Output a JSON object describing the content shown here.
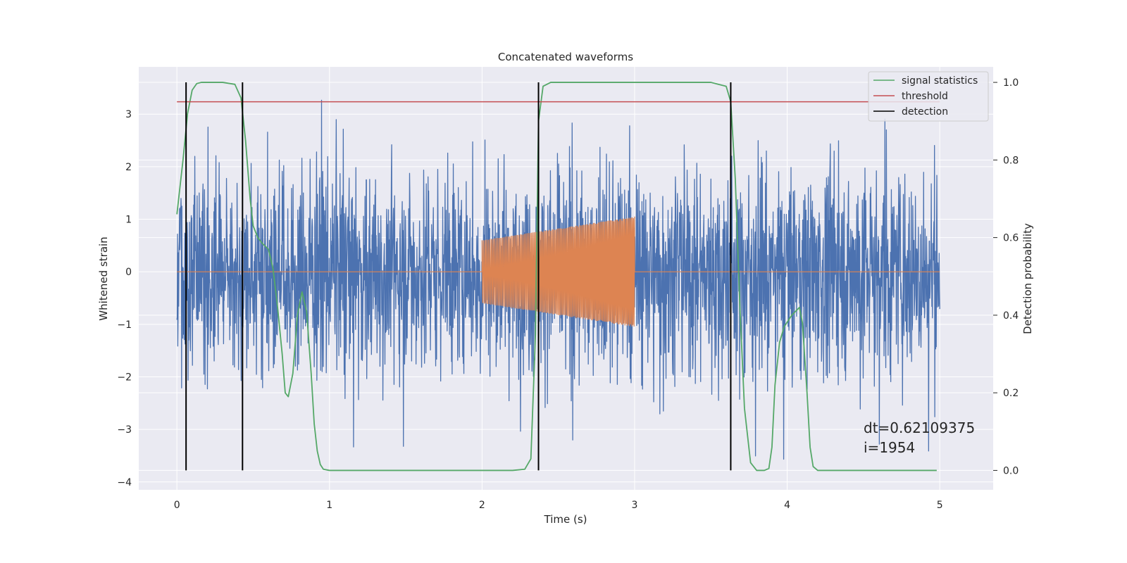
{
  "chart_data": {
    "type": "line",
    "title": "Concatenated waveforms",
    "xlabel": "Time (s)",
    "ylabel": "Whitened strain",
    "ylabel_right": "Detection probability",
    "xlim": [
      -0.25,
      5.35
    ],
    "ylim": [
      -4.15,
      3.9
    ],
    "ylim_right": [
      -0.05,
      1.04
    ],
    "x_ticks": [
      0,
      1,
      2,
      3,
      4,
      5
    ],
    "y_ticks": [
      -4,
      -3,
      -2,
      -1,
      0,
      1,
      2,
      3
    ],
    "y_ticks_right": [
      0.0,
      0.2,
      0.4,
      0.6,
      0.8,
      1.0
    ],
    "grid": true,
    "legend_position": "top-right",
    "legend": [
      {
        "label": "signal statistics",
        "color": "#55a868"
      },
      {
        "label": "threshold",
        "color": "#c44e52"
      },
      {
        "label": "detection",
        "color": "#000000"
      }
    ],
    "series": [
      {
        "kind": "noise",
        "axis": "left",
        "color": "#4c72b0",
        "x_range": [
          0,
          5
        ],
        "envelope": [
          -3.9,
          3.6
        ]
      },
      {
        "kind": "chirp",
        "axis": "left",
        "color": "#dd8452",
        "x_range": [
          0,
          5
        ],
        "signal_window": [
          2.0,
          3.0
        ],
        "amplitude": [
          0.6,
          1.05
        ]
      },
      {
        "name": "signal statistics",
        "axis": "right",
        "color": "#55a868",
        "x": [
          0.0,
          0.04,
          0.07,
          0.1,
          0.13,
          0.16,
          0.2,
          0.3,
          0.38,
          0.42,
          0.45,
          0.48,
          0.5,
          0.53,
          0.56,
          0.6,
          0.63,
          0.66,
          0.69,
          0.71,
          0.73,
          0.76,
          0.79,
          0.82,
          0.85,
          0.88,
          0.9,
          0.92,
          0.94,
          0.96,
          1.0,
          1.5,
          2.0,
          2.2,
          2.28,
          2.32,
          2.35,
          2.37,
          2.4,
          2.45,
          3.0,
          3.5,
          3.6,
          3.63,
          3.66,
          3.69,
          3.72,
          3.76,
          3.8,
          3.85,
          3.88,
          3.9,
          3.92,
          3.95,
          3.98,
          4.03,
          4.08,
          4.1,
          4.13,
          4.15,
          4.17,
          4.2,
          4.3,
          4.98
        ],
        "y": [
          0.66,
          0.8,
          0.92,
          0.98,
          0.997,
          1.0,
          1.0,
          1.0,
          0.995,
          0.96,
          0.85,
          0.7,
          0.63,
          0.6,
          0.585,
          0.57,
          0.52,
          0.42,
          0.3,
          0.2,
          0.19,
          0.25,
          0.4,
          0.46,
          0.41,
          0.25,
          0.12,
          0.05,
          0.015,
          0.003,
          0.0,
          0.0,
          0.0,
          0.0,
          0.003,
          0.03,
          0.35,
          0.9,
          0.99,
          1.0,
          1.0,
          1.0,
          0.99,
          0.95,
          0.75,
          0.42,
          0.16,
          0.02,
          0.0,
          0.0,
          0.005,
          0.06,
          0.22,
          0.33,
          0.37,
          0.4,
          0.42,
          0.38,
          0.2,
          0.06,
          0.01,
          0.0,
          0.0,
          0.0
        ]
      },
      {
        "name": "threshold",
        "axis": "right",
        "color": "#c44e52",
        "x": [
          0,
          5
        ],
        "y": [
          0.95,
          0.95
        ]
      },
      {
        "name": "detection",
        "axis": "right",
        "color": "#000000",
        "kind": "vlines",
        "x": [
          0.06,
          0.43,
          2.37,
          3.63
        ],
        "y_range": [
          0.0,
          1.0
        ]
      }
    ],
    "annotation": "dt=0.62109375\n i=1954"
  }
}
